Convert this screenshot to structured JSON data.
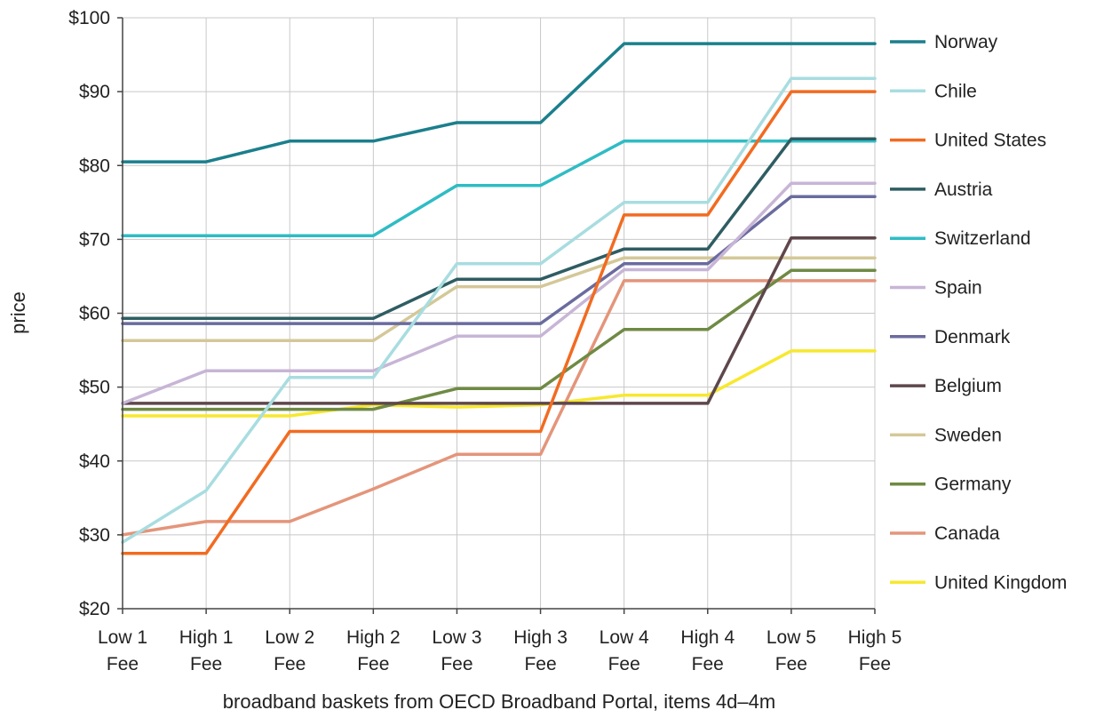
{
  "chart_data": {
    "type": "line",
    "title": "",
    "xlabel": "broadband baskets from OECD Broadband Portal, items 4d–4m",
    "ylabel": "price",
    "categories": [
      [
        "Low 1",
        "Fee"
      ],
      [
        "High 1",
        "Fee"
      ],
      [
        "Low 2",
        "Fee"
      ],
      [
        "High 2",
        "Fee"
      ],
      [
        "Low 3",
        "Fee"
      ],
      [
        "High 3",
        "Fee"
      ],
      [
        "Low 4",
        "Fee"
      ],
      [
        "High 4",
        "Fee"
      ],
      [
        "Low 5",
        "Fee"
      ],
      [
        "High 5",
        "Fee"
      ]
    ],
    "ylim": [
      20,
      100
    ],
    "yticks": [
      20,
      30,
      40,
      50,
      60,
      70,
      80,
      90,
      100
    ],
    "ytick_labels": [
      "$20",
      "$30",
      "$40",
      "$50",
      "$60",
      "$70",
      "$80",
      "$90",
      "$100"
    ],
    "grid": true,
    "legend_position": "right",
    "series": [
      {
        "name": "Norway",
        "color": "#1b7f8c",
        "values": [
          80.5,
          80.5,
          83.3,
          83.3,
          85.8,
          85.8,
          96.5,
          96.5,
          96.5,
          96.5
        ]
      },
      {
        "name": "Chile",
        "color": "#a8dde0",
        "values": [
          29.0,
          36.0,
          51.3,
          51.3,
          66.7,
          66.7,
          75.0,
          75.0,
          91.8,
          91.8
        ]
      },
      {
        "name": "United States",
        "color": "#f26b21",
        "values": [
          27.5,
          27.5,
          44.0,
          44.0,
          44.0,
          44.0,
          73.3,
          73.3,
          90.0,
          90.0
        ]
      },
      {
        "name": "Austria",
        "color": "#2e5d62",
        "values": [
          59.3,
          59.3,
          59.3,
          59.3,
          64.6,
          64.6,
          68.7,
          68.7,
          83.6,
          83.6
        ]
      },
      {
        "name": "Switzerland",
        "color": "#2fbcc4",
        "values": [
          70.5,
          70.5,
          70.5,
          70.5,
          77.3,
          77.3,
          83.3,
          83.3,
          83.3,
          83.3
        ]
      },
      {
        "name": "Spain",
        "color": "#c7b5d6",
        "values": [
          47.8,
          52.2,
          52.2,
          52.2,
          56.9,
          56.9,
          65.9,
          65.9,
          77.6,
          77.6
        ]
      },
      {
        "name": "Denmark",
        "color": "#6a6b9e",
        "values": [
          58.6,
          58.6,
          58.6,
          58.6,
          58.6,
          58.6,
          66.7,
          66.7,
          75.8,
          75.8
        ]
      },
      {
        "name": "Belgium",
        "color": "#5e474c",
        "values": [
          47.8,
          47.8,
          47.8,
          47.8,
          47.8,
          47.8,
          47.8,
          47.8,
          70.2,
          70.2
        ]
      },
      {
        "name": "Sweden",
        "color": "#d4c898",
        "values": [
          56.3,
          56.3,
          56.3,
          56.3,
          63.6,
          63.6,
          67.5,
          67.5,
          67.5,
          67.5
        ]
      },
      {
        "name": "Germany",
        "color": "#6f8a44",
        "values": [
          47.0,
          47.0,
          47.0,
          47.0,
          49.8,
          49.8,
          57.8,
          57.8,
          65.8,
          65.8
        ]
      },
      {
        "name": "Canada",
        "color": "#e4957a",
        "values": [
          30.0,
          31.8,
          31.8,
          36.2,
          40.9,
          40.9,
          64.4,
          64.4,
          64.4,
          64.4
        ]
      },
      {
        "name": "United Kingdom",
        "color": "#f7e82f",
        "values": [
          46.1,
          46.1,
          46.1,
          47.6,
          47.3,
          47.6,
          48.9,
          48.9,
          54.9,
          54.9
        ]
      }
    ]
  }
}
